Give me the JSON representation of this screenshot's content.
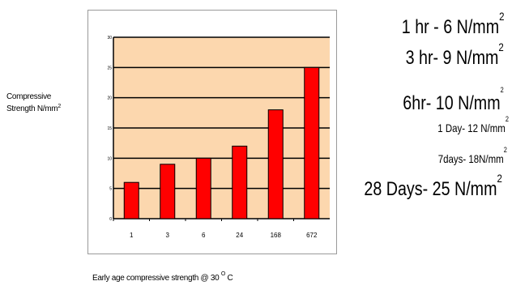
{
  "chart_data": {
    "type": "bar",
    "categories": [
      "1",
      "3",
      "6",
      "24",
      "168",
      "672"
    ],
    "values": [
      6,
      9,
      10,
      12,
      18,
      25
    ],
    "ylim": [
      0,
      30
    ],
    "yticks": [
      "0",
      "5",
      "10",
      "15",
      "20",
      "25",
      "30"
    ],
    "ylabel_main": "Compressive",
    "ylabel_unit": "Strength N/mm",
    "ylabel_sup": "2",
    "xlabel": "Early age compressive strength @ 30",
    "xlabel_sup": "O",
    "xlabel_unit": "C",
    "grid": true,
    "colors": {
      "bar": "#ff0000",
      "plot_bg": "#fcd7ae",
      "grid": "#000000"
    }
  },
  "notes": [
    {
      "text": "1 hr - 6 N/mm",
      "sup": "2"
    },
    {
      "text": "3 hr- 9 N/mm",
      "sup": "2"
    },
    {
      "text": "6hr- 10 N/mm",
      "sup": "2"
    },
    {
      "text": "1 Day- 12 N/mm",
      "sup": "2"
    },
    {
      "text": "7days- 18N/mm",
      "sup": "2"
    },
    {
      "text": "28 Days- 25 N/mm",
      "sup": "2"
    }
  ]
}
